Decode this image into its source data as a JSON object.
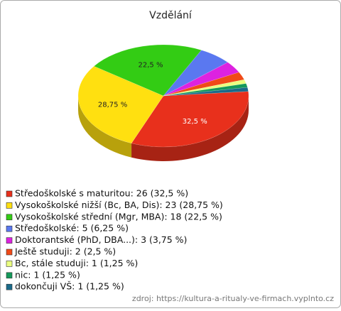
{
  "chart_data": {
    "type": "pie",
    "title": "Vzdělání",
    "categories": [
      "Středoškolské s maturitou: 26 (32,5 %)",
      "Vysokoškolské nižší (Bc, BA, Dis): 23 (28,75 %)",
      "Vysokoškolské střední (Mgr, MBA): 18 (22,5 %)",
      "Středoškolské: 5 (6,25 %)",
      "Doktorantské (PhD, DBA...): 3 (3,75 %)",
      "Ještě studuji: 2 (2,5 %)",
      "Bc, stále studuji: 1 (1,25 %)",
      "nic: 1 (1,25 %)",
      "dokončuji VŠ: 1 (1,25 %)"
    ],
    "values": [
      32.5,
      28.75,
      22.5,
      6.25,
      3.75,
      2.5,
      1.25,
      1.25,
      1.25
    ],
    "value_labels": [
      "32,5 %",
      "28,75 %",
      "22,5 %",
      null,
      null,
      null,
      null,
      null,
      null
    ],
    "colors": [
      "#e8301c",
      "#ffe010",
      "#33cc14",
      "#5a78f0",
      "#dd22e0",
      "#f04a18",
      "#eaff80",
      "#14995a",
      "#1a6a8a"
    ],
    "source": "zdroj: https://kultura-a-ritualy-ve-firmach.vyplnto.cz"
  }
}
